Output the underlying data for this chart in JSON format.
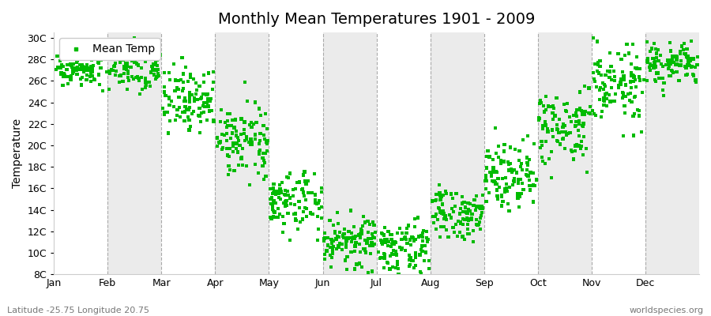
{
  "title": "Monthly Mean Temperatures 1901 - 2009",
  "ylabel": "Temperature",
  "subtitle_left": "Latitude -25.75 Longitude 20.75",
  "subtitle_right": "worldspecies.org",
  "legend_label": "Mean Temp",
  "ytick_labels": [
    "8C",
    "10C",
    "12C",
    "14C",
    "16C",
    "18C",
    "20C",
    "22C",
    "24C",
    "26C",
    "28C",
    "30C"
  ],
  "ytick_values": [
    8,
    10,
    12,
    14,
    16,
    18,
    20,
    22,
    24,
    26,
    28,
    30
  ],
  "ylim": [
    8,
    30.5
  ],
  "months": [
    "Jan",
    "Feb",
    "Mar",
    "Apr",
    "May",
    "Jun",
    "Jul",
    "Aug",
    "Sep",
    "Oct",
    "Nov",
    "Dec"
  ],
  "month_starts": [
    0,
    1,
    2,
    3,
    4,
    5,
    6,
    7,
    8,
    9,
    10,
    11
  ],
  "month_edges": [
    0,
    1,
    2,
    3,
    4,
    5,
    6,
    7,
    8,
    9,
    10,
    11,
    12
  ],
  "marker_color": "#00bb00",
  "marker_size": 3,
  "background_color": "#ffffff",
  "band_color_odd": "#ebebeb",
  "band_color_even": "#ffffff",
  "dashed_line_color": "#aaaaaa",
  "title_fontsize": 14,
  "axis_label_fontsize": 10,
  "tick_fontsize": 9,
  "monthly_mean_temps": [
    27.2,
    27.5,
    24.3,
    20.5,
    14.8,
    11.0,
    10.5,
    13.5,
    17.5,
    21.5,
    25.5,
    27.5
  ],
  "monthly_std": [
    0.8,
    1.2,
    1.5,
    1.5,
    1.5,
    1.2,
    1.2,
    1.2,
    1.5,
    1.8,
    1.8,
    1.0
  ],
  "n_years": 109
}
